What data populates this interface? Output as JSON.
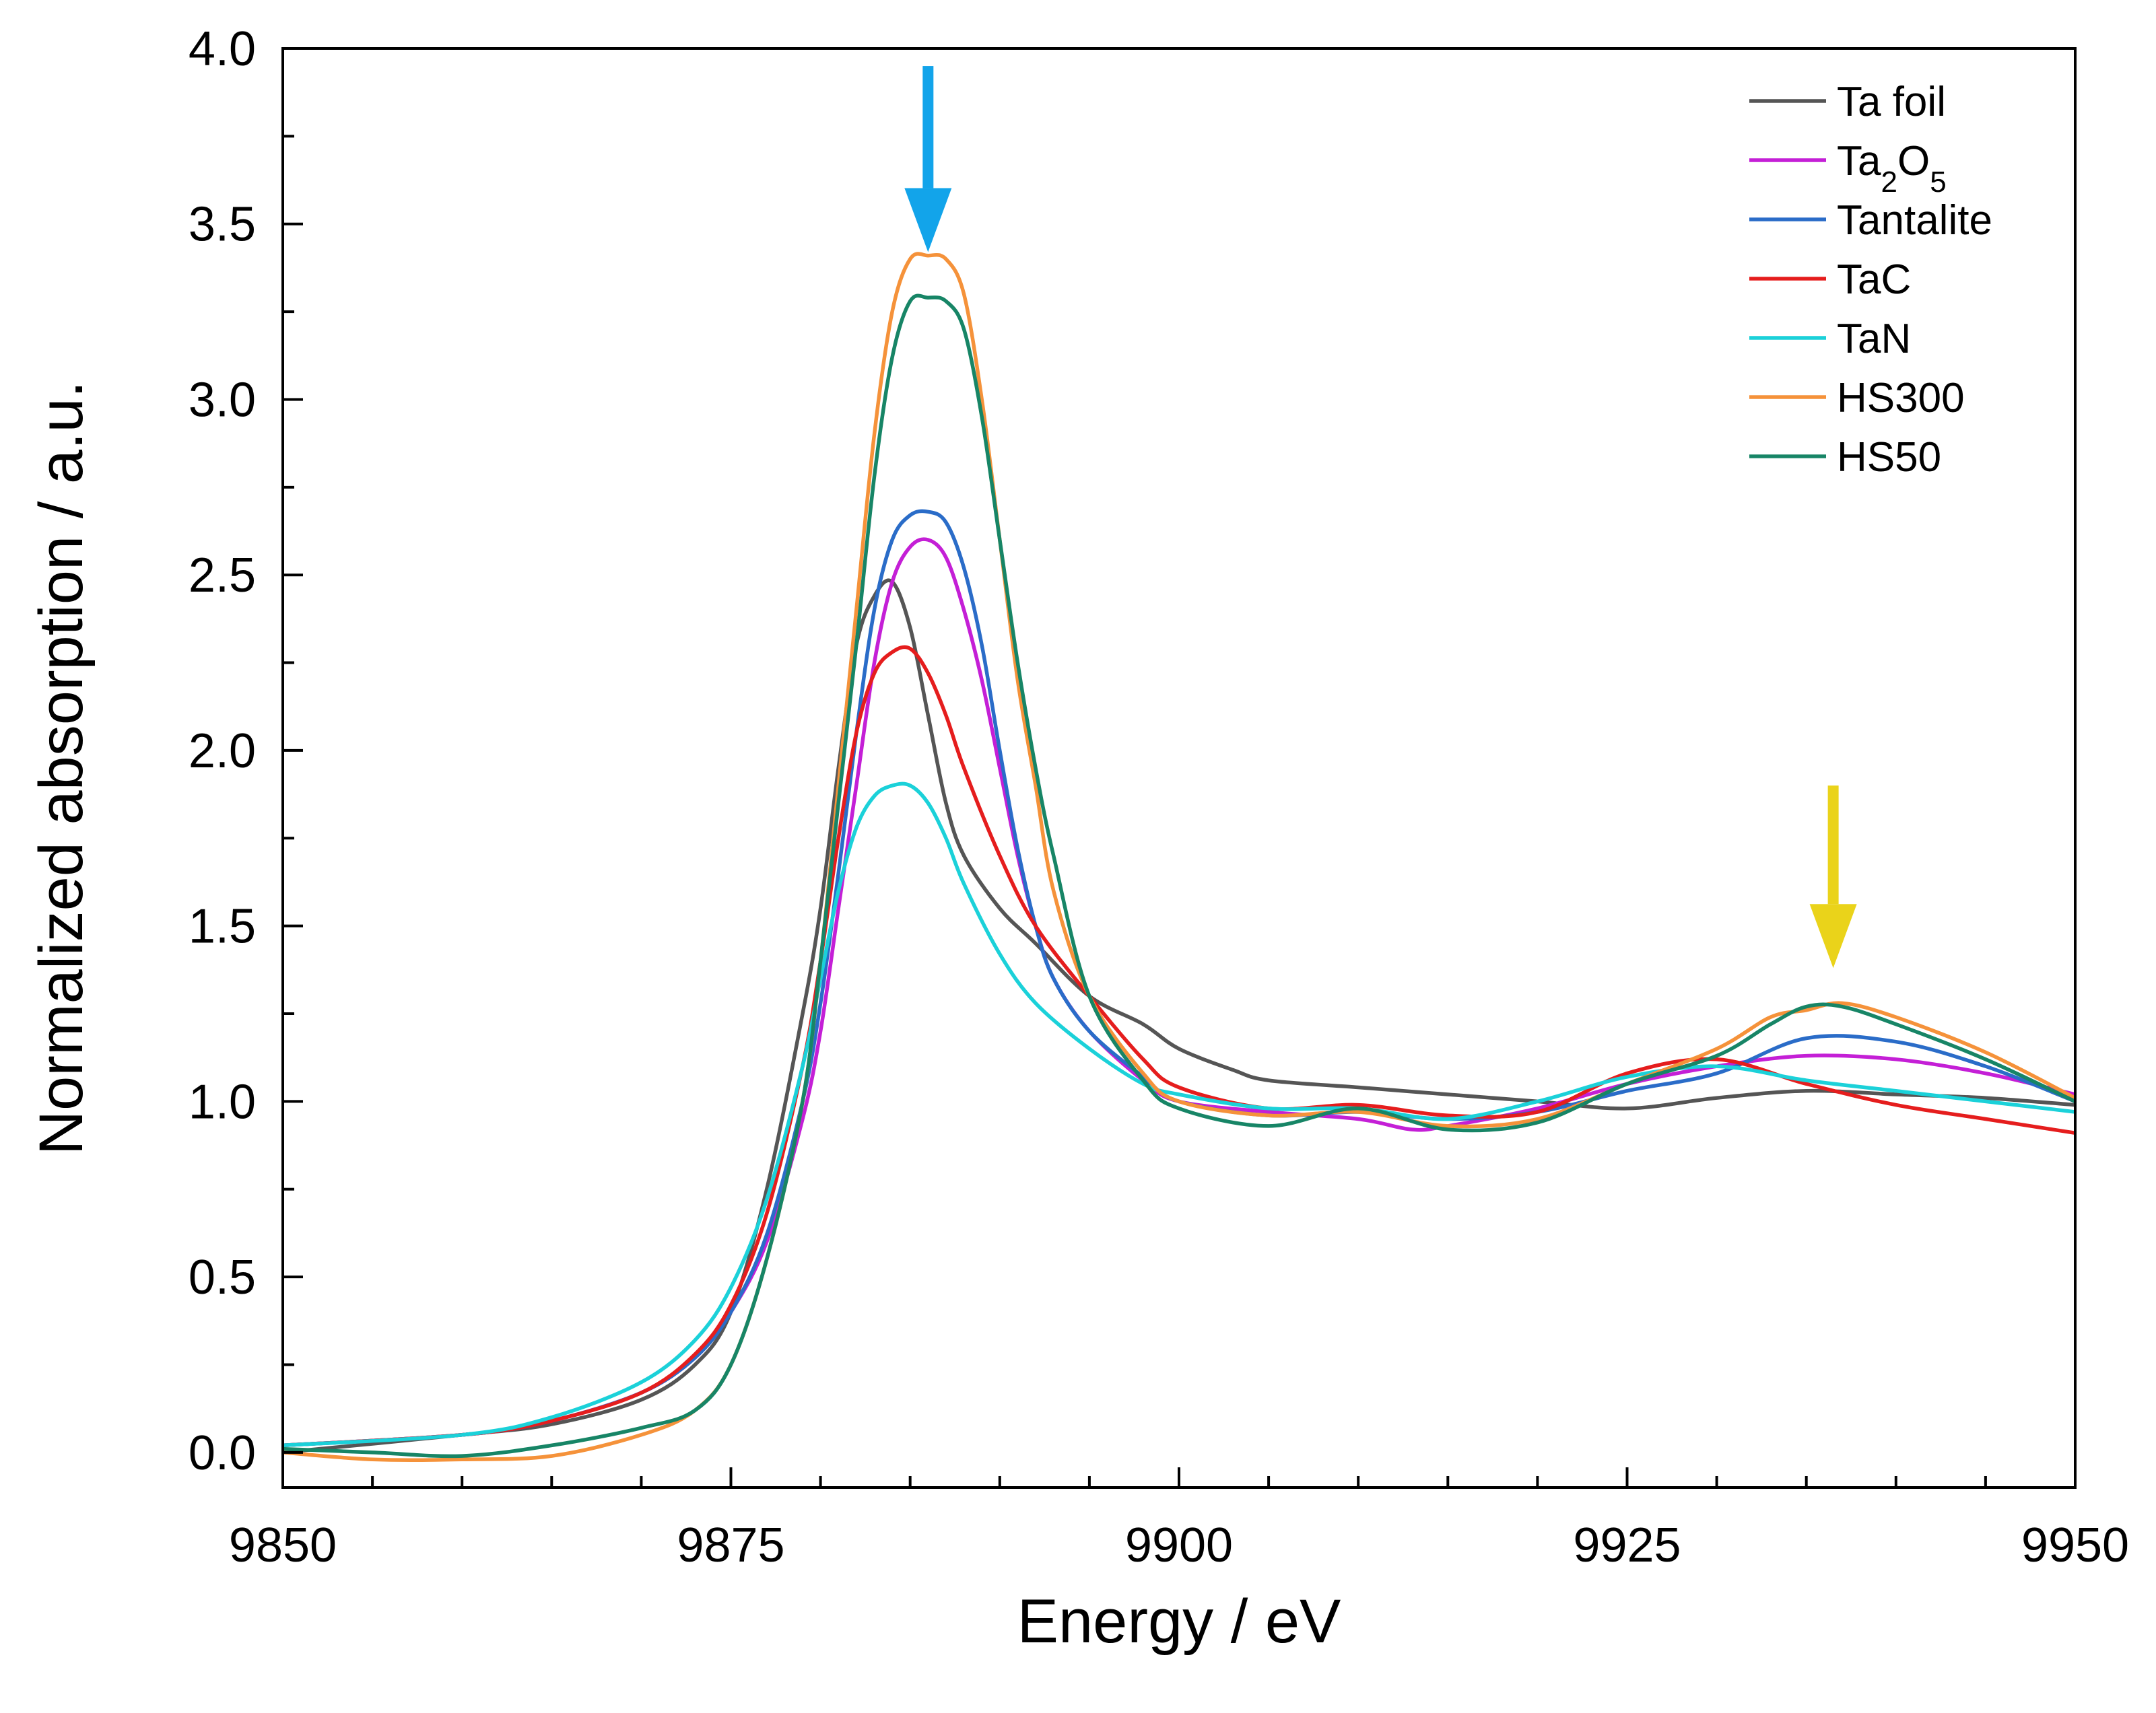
{
  "chart_data": {
    "type": "line",
    "title": "",
    "xlabel": "Energy / eV",
    "ylabel": "Normalized absorption / a.u.",
    "xlim": [
      9850,
      9950
    ],
    "ylim": [
      -0.1,
      4.0
    ],
    "xticks": [
      9850,
      9875,
      9900,
      9925,
      9950
    ],
    "xtick_labels": [
      "9850",
      "9875",
      "9900",
      "9925",
      "9950"
    ],
    "yticks": [
      0.0,
      0.5,
      1.0,
      1.5,
      2.0,
      2.5,
      3.0,
      3.5,
      4.0
    ],
    "ytick_labels": [
      "0.0",
      "0.5",
      "1.0",
      "1.5",
      "2.0",
      "2.5",
      "3.0",
      "3.5",
      "4.0"
    ],
    "grid": false,
    "legend_position": "top-right",
    "annotations": [
      {
        "type": "arrow",
        "color": "#12a4ea",
        "x": 9886,
        "y_from": 3.95,
        "y_to": 3.42
      },
      {
        "type": "arrow",
        "color": "#ead31a",
        "x": 9936.5,
        "y_from": 1.9,
        "y_to": 1.38
      }
    ],
    "series": [
      {
        "name": "Ta foil",
        "name_base": "Ta foil",
        "color": "#555555",
        "x": [
          9850,
          9860,
          9865,
          9870,
          9873,
          9875,
          9877,
          9879,
          9880,
          9881,
          9882,
          9883,
          9884,
          9885,
          9886,
          9887,
          9888,
          9890,
          9892,
          9895,
          9898,
          9900,
          9903,
          9905,
          9910,
          9915,
          9920,
          9925,
          9930,
          9935,
          9940,
          9945,
          9950
        ],
        "y": [
          0.0,
          0.05,
          0.08,
          0.15,
          0.25,
          0.4,
          0.75,
          1.25,
          1.55,
          1.95,
          2.3,
          2.44,
          2.48,
          2.35,
          2.1,
          1.85,
          1.7,
          1.55,
          1.45,
          1.3,
          1.22,
          1.15,
          1.09,
          1.06,
          1.04,
          1.02,
          1.0,
          0.98,
          1.01,
          1.03,
          1.02,
          1.01,
          0.99
        ]
      },
      {
        "name": "Ta2O5",
        "name_base": "Ta",
        "sub1": "2",
        "mid": "O",
        "sub2": "5",
        "color": "#c41fd6",
        "x": [
          9850,
          9860,
          9865,
          9870,
          9873,
          9875,
          9877,
          9879,
          9880,
          9881,
          9882,
          9883,
          9884,
          9885,
          9886,
          9887,
          9888,
          9889,
          9890,
          9891,
          9892,
          9893,
          9895,
          9898,
          9900,
          9905,
          9910,
          9913,
          9915,
          9920,
          9925,
          9930,
          9935,
          9940,
          9945,
          9950
        ],
        "y": [
          0.02,
          0.05,
          0.09,
          0.17,
          0.27,
          0.4,
          0.6,
          0.95,
          1.2,
          1.55,
          1.9,
          2.25,
          2.48,
          2.58,
          2.6,
          2.55,
          2.4,
          2.2,
          1.95,
          1.7,
          1.5,
          1.35,
          1.2,
          1.06,
          1.0,
          0.97,
          0.95,
          0.92,
          0.93,
          0.98,
          1.05,
          1.1,
          1.13,
          1.12,
          1.08,
          1.02
        ]
      },
      {
        "name": "Tantalite",
        "name_base": "Tantalite",
        "color": "#2a6cc8",
        "x": [
          9850,
          9860,
          9865,
          9870,
          9873,
          9875,
          9877,
          9879,
          9880,
          9881,
          9882,
          9883,
          9884,
          9885,
          9886,
          9887,
          9888,
          9889,
          9890,
          9891,
          9892,
          9893,
          9895,
          9898,
          9900,
          9905,
          9910,
          9915,
          9920,
          9925,
          9930,
          9935,
          9940,
          9945,
          9950
        ],
        "y": [
          0.02,
          0.05,
          0.09,
          0.17,
          0.27,
          0.4,
          0.62,
          1.0,
          1.28,
          1.65,
          2.05,
          2.4,
          2.6,
          2.67,
          2.68,
          2.65,
          2.52,
          2.3,
          2.0,
          1.72,
          1.5,
          1.35,
          1.2,
          1.07,
          1.0,
          0.96,
          0.97,
          0.95,
          0.97,
          1.03,
          1.08,
          1.18,
          1.17,
          1.1,
          1.0
        ]
      },
      {
        "name": "TaC",
        "name_base": "TaC",
        "color": "#e51d1d",
        "x": [
          9850,
          9860,
          9865,
          9870,
          9873,
          9875,
          9877,
          9879,
          9880,
          9881,
          9882,
          9883,
          9884,
          9885,
          9886,
          9887,
          9888,
          9890,
          9892,
          9895,
          9898,
          9900,
          9905,
          9910,
          9915,
          9920,
          9925,
          9930,
          9935,
          9940,
          9945,
          9950
        ],
        "y": [
          0.02,
          0.05,
          0.09,
          0.17,
          0.28,
          0.42,
          0.68,
          1.1,
          1.4,
          1.75,
          2.05,
          2.22,
          2.28,
          2.29,
          2.22,
          2.1,
          1.95,
          1.7,
          1.5,
          1.3,
          1.12,
          1.04,
          0.98,
          0.99,
          0.96,
          0.97,
          1.08,
          1.12,
          1.05,
          0.99,
          0.95,
          0.91
        ]
      },
      {
        "name": "TaN",
        "name_base": "TaN",
        "color": "#1bd1d9",
        "x": [
          9850,
          9860,
          9865,
          9870,
          9873,
          9875,
          9877,
          9879,
          9880,
          9881,
          9882,
          9883,
          9884,
          9885,
          9886,
          9887,
          9888,
          9890,
          9892,
          9895,
          9898,
          9900,
          9905,
          9910,
          9915,
          9920,
          9925,
          9930,
          9935,
          9940,
          9945,
          9950
        ],
        "y": [
          0.02,
          0.05,
          0.1,
          0.2,
          0.32,
          0.47,
          0.72,
          1.1,
          1.35,
          1.6,
          1.78,
          1.87,
          1.9,
          1.9,
          1.85,
          1.75,
          1.62,
          1.42,
          1.28,
          1.15,
          1.05,
          1.02,
          0.98,
          0.98,
          0.95,
          1.0,
          1.07,
          1.1,
          1.06,
          1.03,
          1.0,
          0.97
        ]
      },
      {
        "name": "HS300",
        "name_base": "HS300",
        "color": "#f5923a",
        "x": [
          9850,
          9855,
          9860,
          9865,
          9870,
          9873,
          9875,
          9877,
          9879,
          9880,
          9881,
          9882,
          9883,
          9884,
          9885,
          9886,
          9887,
          9888,
          9889,
          9890,
          9891,
          9892,
          9893,
          9895,
          9898,
          9900,
          9905,
          9910,
          9915,
          9920,
          9925,
          9930,
          9933,
          9935,
          9937,
          9940,
          9945,
          9950
        ],
        "y": [
          0.0,
          -0.02,
          -0.02,
          -0.01,
          0.05,
          0.12,
          0.25,
          0.55,
          1.0,
          1.4,
          1.9,
          2.4,
          2.9,
          3.25,
          3.4,
          3.41,
          3.4,
          3.3,
          3.0,
          2.6,
          2.2,
          1.9,
          1.6,
          1.3,
          1.08,
          1.0,
          0.96,
          0.97,
          0.93,
          0.95,
          1.05,
          1.15,
          1.24,
          1.26,
          1.28,
          1.24,
          1.14,
          1.01
        ]
      },
      {
        "name": "HS50",
        "name_base": "HS50",
        "color": "#178566",
        "x": [
          9850,
          9855,
          9860,
          9865,
          9870,
          9873,
          9875,
          9877,
          9879,
          9880,
          9881,
          9882,
          9883,
          9884,
          9885,
          9886,
          9887,
          9888,
          9889,
          9890,
          9891,
          9892,
          9893,
          9895,
          9898,
          9900,
          9905,
          9910,
          9915,
          9920,
          9925,
          9930,
          9933,
          9935,
          9937,
          9940,
          9945,
          9950
        ],
        "y": [
          0.01,
          0.0,
          -0.01,
          0.02,
          0.07,
          0.12,
          0.25,
          0.55,
          1.0,
          1.4,
          1.85,
          2.3,
          2.78,
          3.12,
          3.28,
          3.29,
          3.28,
          3.2,
          2.95,
          2.6,
          2.25,
          1.95,
          1.7,
          1.3,
          1.06,
          0.98,
          0.93,
          0.98,
          0.92,
          0.94,
          1.05,
          1.13,
          1.22,
          1.27,
          1.27,
          1.22,
          1.12,
          1.0
        ]
      }
    ]
  }
}
